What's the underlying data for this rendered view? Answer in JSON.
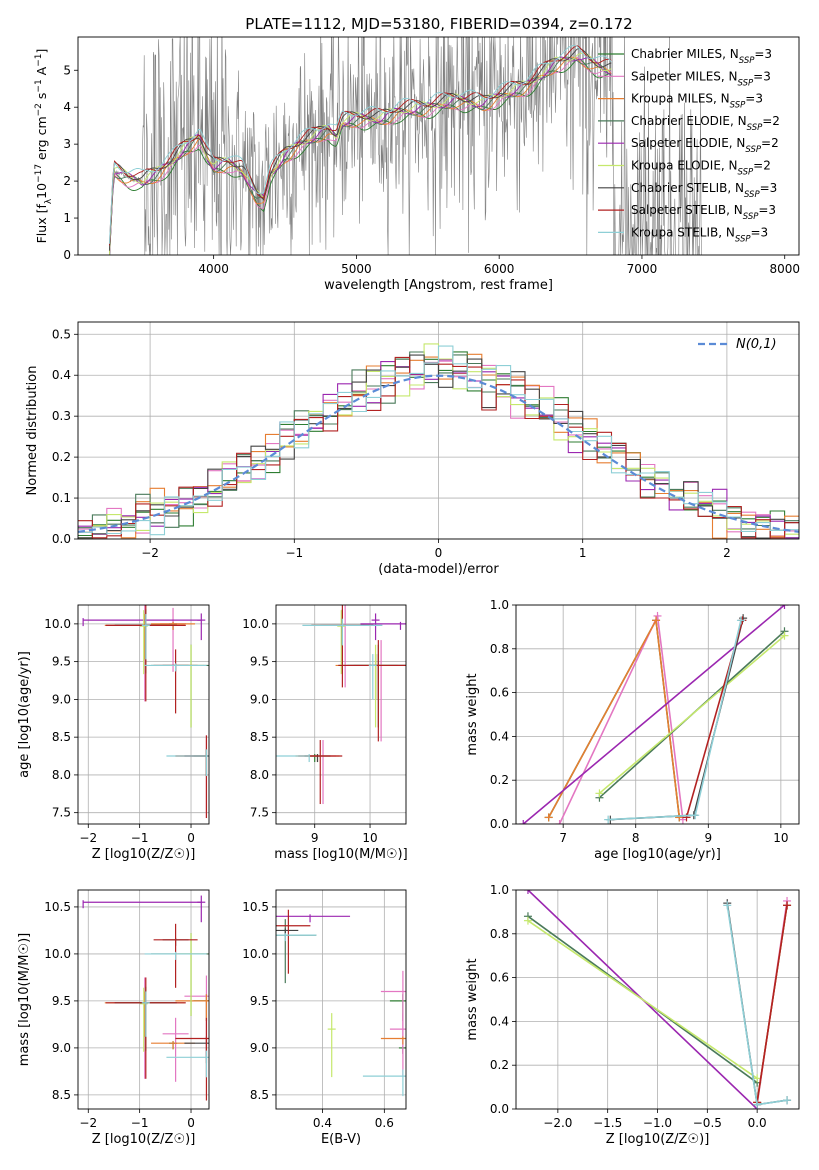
{
  "figure_title": "PLATE=1112, MJD=53180, FIBERID=0394, z=0.172",
  "colors": {
    "Chabrier MILES": "#2e7d32",
    "Salpeter MILES": "#e377c2",
    "Kroupa MILES": "#e67e32",
    "Chabrier ELODIE": "#4a7a5a",
    "Salpeter ELODIE": "#9b27b0",
    "Kroupa ELODIE": "#c5e86c",
    "Chabrier STELIB": "#444444",
    "Salpeter STELIB": "#b22222",
    "Kroupa STELIB": "#8ecfd6",
    "data": "#808080",
    "gaussian": "#5b8bd6",
    "grid": "#b0b0b0"
  },
  "chart_data": [
    {
      "id": "spectrum",
      "type": "line",
      "title": "PLATE=1112, MJD=53180, FIBERID=0394, z=0.172",
      "xlabel": "wavelength [Angstrom, rest frame]",
      "ylabel_parts": [
        "Flux [f",
        "λ",
        "10",
        "−17",
        " erg cm",
        "−2",
        " s",
        "−1",
        " A",
        "−1",
        "]"
      ],
      "xlim": [
        3050,
        8100
      ],
      "ylim": [
        0,
        5.9
      ],
      "xticks": [
        4000,
        5000,
        6000,
        7000,
        8000
      ],
      "yticks": [
        0,
        1,
        2,
        3,
        4,
        5
      ],
      "grid": false,
      "legend_position": "top-right",
      "data_range": [
        3270,
        7420
      ],
      "model_range": [
        3270,
        6790
      ],
      "continuum_points": [
        [
          3270,
          0
        ],
        [
          3300,
          2.3
        ],
        [
          3400,
          2.1
        ],
        [
          3500,
          2.0
        ],
        [
          3600,
          2.2
        ],
        [
          3700,
          2.5
        ],
        [
          3800,
          2.9
        ],
        [
          3900,
          3.2
        ],
        [
          3950,
          2.7
        ],
        [
          4000,
          2.4
        ],
        [
          4100,
          2.5
        ],
        [
          4200,
          2.3
        ],
        [
          4300,
          1.6
        ],
        [
          4350,
          1.5
        ],
        [
          4400,
          2.2
        ],
        [
          4500,
          2.7
        ],
        [
          4600,
          3.0
        ],
        [
          4700,
          3.2
        ],
        [
          4800,
          3.4
        ],
        [
          4861,
          3.2
        ],
        [
          4900,
          3.6
        ],
        [
          5000,
          3.7
        ],
        [
          5175,
          3.7
        ],
        [
          5300,
          3.9
        ],
        [
          5500,
          4.0
        ],
        [
          5700,
          4.2
        ],
        [
          5890,
          4.1
        ],
        [
          6000,
          4.3
        ],
        [
          6200,
          4.6
        ],
        [
          6400,
          5.2
        ],
        [
          6550,
          5.4
        ],
        [
          6700,
          5.1
        ],
        [
          6790,
          5.0
        ]
      ],
      "legend": [
        "Chabrier MILES, N_SSP=3",
        "Salpeter MILES, N_SSP=3",
        "Kroupa MILES, N_SSP=3",
        "Chabrier ELODIE, N_SSP=2",
        "Salpeter ELODIE, N_SSP=2",
        "Kroupa ELODIE, N_SSP=2",
        "Chabrier STELIB, N_SSP=3",
        "Salpeter STELIB, N_SSP=3",
        "Kroupa STELIB, N_SSP=3"
      ]
    },
    {
      "id": "residuals",
      "type": "line",
      "xlabel": "(data-model)/error",
      "ylabel": "Normed distribution",
      "xlim": [
        -2.5,
        2.5
      ],
      "ylim": [
        0,
        0.53
      ],
      "xticks": [
        -2,
        -1,
        0,
        1,
        2
      ],
      "yticks": [
        0.0,
        0.1,
        0.2,
        0.3,
        0.4,
        0.5
      ],
      "grid": true,
      "legend_position": "top-right",
      "legend": [
        "N(0,1)"
      ],
      "bin_width": 0.1,
      "gaussian": {
        "mean": 0,
        "sigma": 1
      }
    },
    {
      "id": "age-vs-Z",
      "type": "scatter",
      "xlabel": "Z [log10(Z/Z☉)]",
      "ylabel": "age  [log10(age/yr)]",
      "xlim": [
        -2.2,
        0.35
      ],
      "ylim": [
        7.35,
        10.25
      ],
      "xticks": [
        -2,
        -1,
        0
      ],
      "yticks": [
        7.5,
        8.0,
        8.5,
        9.0,
        9.5,
        10.0
      ],
      "grid": true,
      "ssp": {
        "Chabrier MILES": [
          [
            -0.35,
            10.0
          ],
          [
            0.3,
            8.25
          ],
          [
            -0.9,
            9.98
          ]
        ],
        "Salpeter MILES": [
          [
            -0.35,
            10.0
          ],
          [
            0.3,
            8.25
          ],
          [
            -0.9,
            9.98
          ]
        ],
        "Kroupa MILES": [
          [
            -0.35,
            10.0
          ],
          [
            0.3,
            8.25
          ],
          [
            -0.9,
            9.98
          ]
        ],
        "Chabrier ELODIE": [
          [
            -0.88,
            9.98
          ],
          [
            0.0,
            9.45
          ]
        ],
        "Salpeter ELODIE": [
          [
            -2.1,
            10.05
          ],
          [
            0.2,
            10.05
          ]
        ],
        "Kroupa ELODIE": [
          [
            -0.92,
            9.97
          ],
          [
            0.0,
            9.45
          ]
        ],
        "Chabrier STELIB": [
          [
            -0.3,
            9.45
          ],
          [
            0.3,
            8.25
          ],
          [
            -0.88,
            9.98
          ]
        ],
        "Salpeter STELIB": [
          [
            -0.3,
            9.45
          ],
          [
            0.3,
            8.25
          ],
          [
            -0.88,
            9.98
          ]
        ],
        "Kroupa STELIB": [
          [
            -0.3,
            9.45
          ],
          [
            0.3,
            8.25
          ],
          [
            -0.88,
            9.98
          ]
        ]
      }
    },
    {
      "id": "age-vs-mass",
      "type": "scatter",
      "xlabel": "mass [log10(M/M☉)]",
      "ylabel": "",
      "xlim": [
        8.3,
        10.65
      ],
      "ylim": [
        7.35,
        10.25
      ],
      "xticks": [
        9,
        10
      ],
      "yticks": [
        7.5,
        8.0,
        8.5,
        9.0,
        9.5,
        10.0
      ],
      "grid": true,
      "ssp": {
        "Chabrier MILES": [
          [
            9.0,
            8.25
          ],
          [
            9.5,
            9.98
          ],
          [
            10.1,
            9.45
          ]
        ],
        "Salpeter MILES": [
          [
            9.15,
            8.25
          ],
          [
            9.55,
            9.98
          ],
          [
            10.2,
            9.45
          ]
        ],
        "Kroupa MILES": [
          [
            9.05,
            8.25
          ],
          [
            9.5,
            9.98
          ],
          [
            10.1,
            9.45
          ]
        ],
        "Chabrier ELODIE": [
          [
            9.5,
            9.98
          ],
          [
            10.15,
            9.45
          ]
        ],
        "Salpeter ELODIE": [
          [
            10.55,
            10.0
          ],
          [
            10.1,
            10.05
          ]
        ],
        "Kroupa ELODIE": [
          [
            9.48,
            9.97
          ],
          [
            10.1,
            9.45
          ]
        ],
        "Chabrier STELIB": [
          [
            9.05,
            8.25
          ],
          [
            9.5,
            9.98
          ],
          [
            10.15,
            9.45
          ]
        ],
        "Salpeter STELIB": [
          [
            9.1,
            8.25
          ],
          [
            9.5,
            9.98
          ],
          [
            10.15,
            9.45
          ]
        ],
        "Kroupa STELIB": [
          [
            8.9,
            8.25
          ],
          [
            9.5,
            9.98
          ],
          [
            10.05,
            9.45
          ]
        ]
      }
    },
    {
      "id": "weight-vs-age",
      "type": "line",
      "xlabel": "age  [log10(age/yr)]",
      "ylabel": "mass weight",
      "xlim": [
        6.35,
        10.25
      ],
      "ylim": [
        0,
        1.0
      ],
      "xticks": [
        7,
        8,
        9,
        10
      ],
      "yticks": [
        0.0,
        0.2,
        0.4,
        0.6,
        0.8,
        1.0
      ],
      "grid": true,
      "series": [
        {
          "key": "Chabrier MILES",
          "x": [
            6.8,
            8.28,
            8.6
          ],
          "y": [
            0.03,
            0.93,
            0.03
          ]
        },
        {
          "key": "Salpeter MILES",
          "x": [
            6.95,
            8.3,
            8.65
          ],
          "y": [
            0.0,
            0.95,
            0.02
          ]
        },
        {
          "key": "Kroupa MILES",
          "x": [
            6.8,
            8.28,
            8.6
          ],
          "y": [
            0.03,
            0.93,
            0.03
          ]
        },
        {
          "key": "Chabrier ELODIE",
          "x": [
            7.5,
            10.05
          ],
          "y": [
            0.12,
            0.88
          ]
        },
        {
          "key": "Salpeter ELODIE",
          "x": [
            6.45,
            10.05
          ],
          "y": [
            0.0,
            1.0
          ]
        },
        {
          "key": "Kroupa ELODIE",
          "x": [
            7.5,
            10.05
          ],
          "y": [
            0.14,
            0.86
          ]
        },
        {
          "key": "Chabrier STELIB",
          "x": [
            7.65,
            8.8,
            9.48
          ],
          "y": [
            0.02,
            0.04,
            0.94
          ]
        },
        {
          "key": "Salpeter STELIB",
          "x": [
            8.7,
            9.47
          ],
          "y": [
            0.03,
            0.93
          ]
        },
        {
          "key": "Kroupa STELIB",
          "x": [
            7.62,
            8.82,
            9.45
          ],
          "y": [
            0.02,
            0.04,
            0.93
          ]
        }
      ]
    },
    {
      "id": "mass-vs-Z",
      "type": "scatter",
      "xlabel": "Z [log10(Z/Z☉)]",
      "ylabel": "mass [log10(M/M☉)]",
      "xlim": [
        -2.2,
        0.35
      ],
      "ylim": [
        8.35,
        10.68
      ],
      "xticks": [
        -2,
        -1,
        0
      ],
      "yticks": [
        8.5,
        9.0,
        9.5,
        10.0,
        10.5
      ],
      "grid": true,
      "ssp": {
        "Chabrier MILES": [
          [
            -0.35,
            9.05
          ],
          [
            0.3,
            9.5
          ],
          [
            -0.9,
            9.48
          ]
        ],
        "Salpeter MILES": [
          [
            -0.3,
            9.15
          ],
          [
            0.3,
            9.55
          ],
          [
            -0.9,
            9.48
          ]
        ],
        "Kroupa MILES": [
          [
            -0.35,
            9.05
          ],
          [
            0.3,
            9.5
          ],
          [
            -0.9,
            9.48
          ]
        ],
        "Chabrier ELODIE": [
          [
            -0.88,
            9.48
          ],
          [
            0.0,
            10.0
          ]
        ],
        "Salpeter ELODIE": [
          [
            -2.1,
            10.55
          ],
          [
            0.2,
            10.55
          ]
        ],
        "Kroupa ELODIE": [
          [
            -0.92,
            9.47
          ],
          [
            0.0,
            10.0
          ]
        ],
        "Chabrier STELIB": [
          [
            -0.3,
            10.15
          ],
          [
            0.3,
            9.05
          ],
          [
            -0.88,
            9.48
          ]
        ],
        "Salpeter STELIB": [
          [
            -0.3,
            10.15
          ],
          [
            0.3,
            9.1
          ],
          [
            -0.88,
            9.48
          ]
        ],
        "Kroupa STELIB": [
          [
            -0.3,
            10.0
          ],
          [
            0.3,
            8.9
          ],
          [
            -0.88,
            9.48
          ]
        ]
      }
    },
    {
      "id": "mass-vs-ebv",
      "type": "scatter",
      "xlabel": "E(B-V)",
      "ylabel": "",
      "xlim": [
        0.25,
        0.67
      ],
      "ylim": [
        8.35,
        10.68
      ],
      "xticks": [
        0.4,
        0.6
      ],
      "yticks": [
        8.5,
        9.0,
        9.5,
        10.0,
        10.5
      ],
      "grid": true,
      "ssp": {
        "Chabrier MILES": [
          [
            0.66,
            9.0
          ],
          [
            0.66,
            9.5
          ]
        ],
        "Salpeter MILES": [
          [
            0.66,
            9.2
          ],
          [
            0.66,
            9.6
          ]
        ],
        "Kroupa MILES": [
          [
            0.66,
            9.1
          ]
        ],
        "Chabrier ELODIE": [
          [
            0.28,
            10.2
          ]
        ],
        "Salpeter ELODIE": [
          [
            0.36,
            10.4
          ]
        ],
        "Kroupa ELODIE": [
          [
            0.43,
            9.2
          ]
        ],
        "Chabrier STELIB": [
          [
            0.28,
            10.25
          ]
        ],
        "Salpeter STELIB": [
          [
            0.29,
            10.3
          ]
        ],
        "Kroupa STELIB": [
          [
            0.28,
            10.2
          ],
          [
            0.66,
            8.7
          ]
        ]
      }
    },
    {
      "id": "weight-vs-Z",
      "type": "line",
      "xlabel": "Z [log10(Z/Z☉)]",
      "ylabel": "mass weight",
      "xlim": [
        -2.42,
        0.42
      ],
      "ylim": [
        0,
        1.0
      ],
      "xticks": [
        -2.0,
        -1.5,
        -1.0,
        -0.5,
        0.0
      ],
      "yticks": [
        0.0,
        0.2,
        0.4,
        0.6,
        0.8,
        1.0
      ],
      "grid": true,
      "series": [
        {
          "key": "Chabrier MILES",
          "x": [
            0.0,
            0.3
          ],
          "y": [
            0.03,
            0.93
          ]
        },
        {
          "key": "Salpeter MILES",
          "x": [
            0.0,
            0.3
          ],
          "y": [
            0.02,
            0.95
          ]
        },
        {
          "key": "Kroupa MILES",
          "x": [
            0.0,
            0.3
          ],
          "y": [
            0.03,
            0.93
          ]
        },
        {
          "key": "Chabrier ELODIE",
          "x": [
            -2.3,
            0.0
          ],
          "y": [
            0.88,
            0.12
          ]
        },
        {
          "key": "Salpeter ELODIE",
          "x": [
            -2.3,
            0.0
          ],
          "y": [
            1.0,
            0.0
          ]
        },
        {
          "key": "Kroupa ELODIE",
          "x": [
            -2.3,
            0.0
          ],
          "y": [
            0.86,
            0.14
          ]
        },
        {
          "key": "Chabrier STELIB",
          "x": [
            -0.3,
            0.0,
            0.3
          ],
          "y": [
            0.94,
            0.02,
            0.04
          ]
        },
        {
          "key": "Salpeter STELIB",
          "x": [
            0.0,
            0.3
          ],
          "y": [
            0.03,
            0.93
          ]
        },
        {
          "key": "Kroupa STELIB",
          "x": [
            -0.3,
            0.0,
            0.3
          ],
          "y": [
            0.93,
            0.02,
            0.04
          ]
        }
      ]
    }
  ]
}
